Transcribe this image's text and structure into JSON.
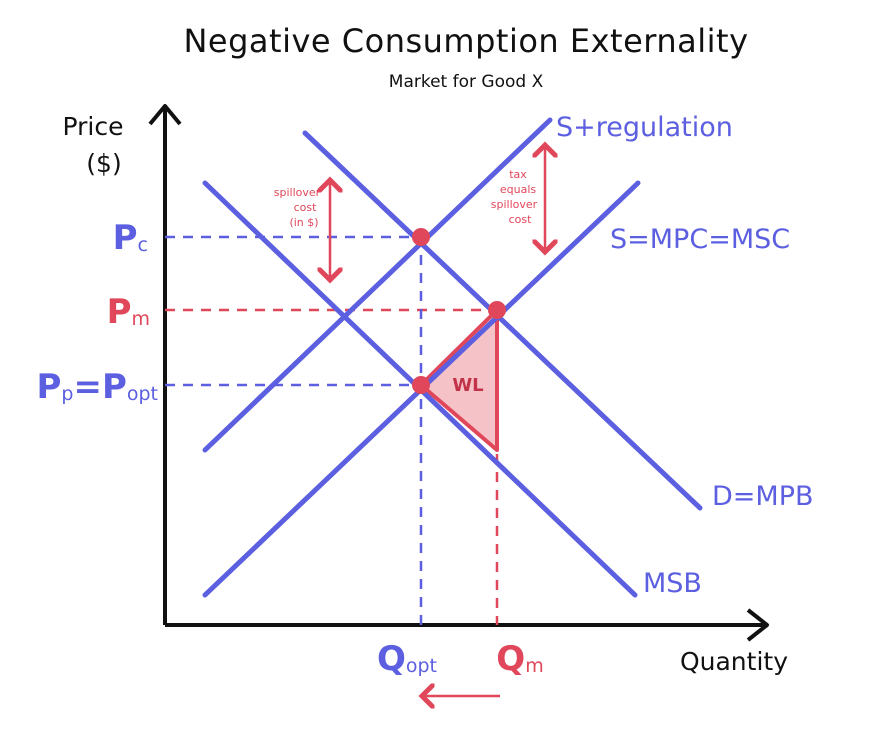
{
  "title": "Negative Consumption Externality",
  "subtitle": "Market for Good X",
  "axes": {
    "y_label_line1": "Price",
    "y_label_line2": "($)",
    "x_label": "Quantity"
  },
  "curves": {
    "s_regulation": "S+regulation",
    "s_mpc_msc": "S=MPC=MSC",
    "d_mpb": "D=MPB",
    "msb": "MSB"
  },
  "price_ticks": {
    "pc_main": "P",
    "pc_sub": "c",
    "pm_main": "P",
    "pm_sub": "m",
    "pp_main": "P",
    "pp_sub": "p",
    "equals": "=",
    "popt_main": "P",
    "popt_sub": "opt"
  },
  "quantity_ticks": {
    "qopt_main": "Q",
    "qopt_sub": "opt",
    "qm_main": "Q",
    "qm_sub": "m"
  },
  "annotations": {
    "spillover": [
      "spillover",
      "cost",
      "(in $)"
    ],
    "tax": [
      "tax",
      "equals",
      "spillover",
      "cost"
    ],
    "welfare_loss": "WL"
  },
  "colors": {
    "curve_blue": "#5b5fe0",
    "accent_red": "#e0475a",
    "wl_fill": "#f5c2c7",
    "axis": "#111111"
  }
}
